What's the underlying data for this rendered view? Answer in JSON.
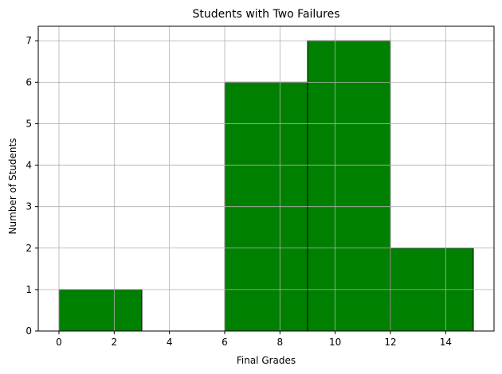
{
  "chart_data": {
    "type": "bar",
    "title": "Students with Two Failures",
    "xlabel": "Final Grades",
    "ylabel": "Number of Students",
    "bins": [
      {
        "start": 0,
        "end": 3,
        "count": 1
      },
      {
        "start": 3,
        "end": 6,
        "count": 0
      },
      {
        "start": 6,
        "end": 9,
        "count": 6
      },
      {
        "start": 9,
        "end": 12,
        "count": 7
      },
      {
        "start": 12,
        "end": 15,
        "count": 2
      }
    ],
    "xlim": [
      -0.75,
      15.75
    ],
    "ylim": [
      0,
      7.35
    ],
    "xticks": [
      "0",
      "2",
      "4",
      "6",
      "8",
      "10",
      "12",
      "14"
    ],
    "yticks": [
      "0",
      "1",
      "2",
      "3",
      "4",
      "5",
      "6",
      "7"
    ],
    "grid": true,
    "bar_color": "#008000",
    "edge_color": "#000000",
    "grid_color": "#b0b0b0"
  }
}
